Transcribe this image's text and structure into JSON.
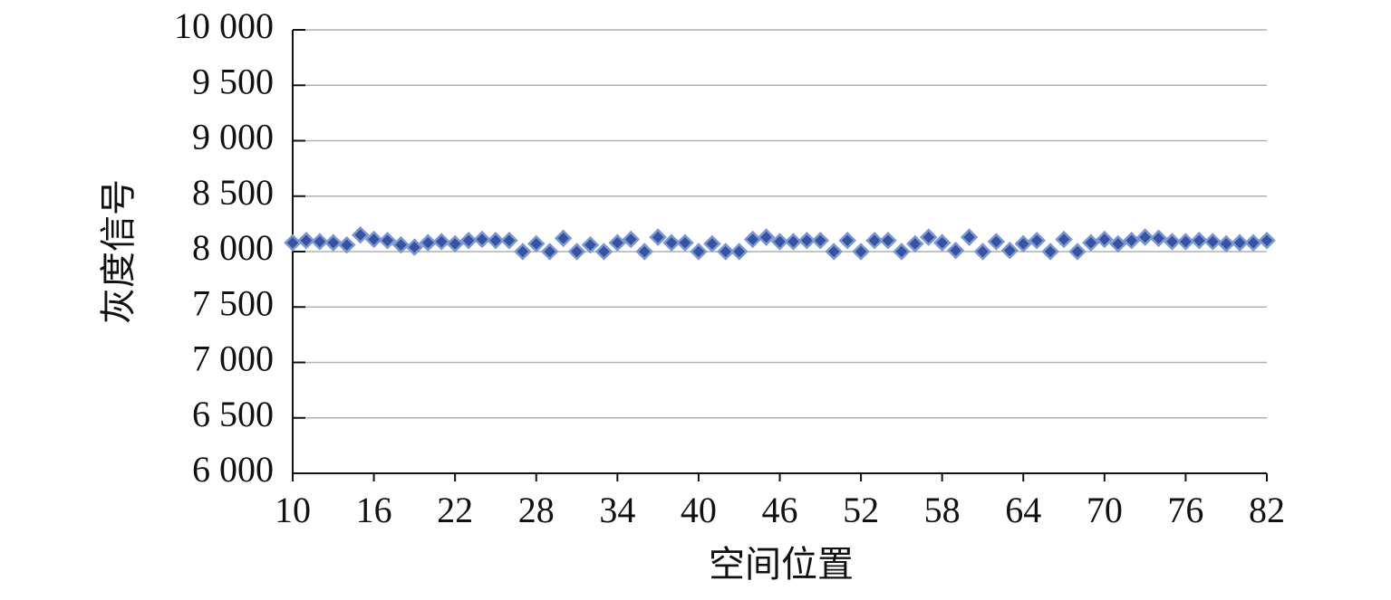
{
  "chart_data": {
    "type": "scatter",
    "x_label": "空间位置",
    "y_label": "灰度信号",
    "x": [
      10,
      11,
      12,
      13,
      14,
      15,
      16,
      17,
      18,
      19,
      20,
      21,
      22,
      23,
      24,
      25,
      26,
      27,
      28,
      29,
      30,
      31,
      32,
      33,
      34,
      35,
      36,
      37,
      38,
      39,
      40,
      41,
      42,
      43,
      44,
      45,
      46,
      47,
      48,
      49,
      50,
      51,
      52,
      53,
      54,
      55,
      56,
      57,
      58,
      59,
      60,
      61,
      62,
      63,
      64,
      65,
      66,
      67,
      68,
      69,
      70,
      71,
      72,
      73,
      74,
      75,
      76,
      77,
      78,
      79,
      80,
      81,
      82
    ],
    "series": [
      {
        "color": "#3552a3",
        "values": [
          8080,
          8100,
          8090,
          8080,
          8060,
          8150,
          8110,
          8100,
          8060,
          8040,
          8080,
          8090,
          8070,
          8100,
          8110,
          8100,
          8100,
          8000,
          8070,
          8000,
          8120,
          8000,
          8060,
          8000,
          8080,
          8110,
          8000,
          8130,
          8080,
          8080,
          8000,
          8070,
          8000,
          8000,
          8110,
          8130,
          8090,
          8090,
          8100,
          8100,
          8000,
          8100,
          8000,
          8100,
          8100,
          8000,
          8070,
          8130,
          8080,
          8010,
          8130,
          8000,
          8090,
          8010,
          8070,
          8100,
          8000,
          8110,
          8000,
          8080,
          8110,
          8070,
          8100,
          8130,
          8120,
          8090,
          8090,
          8100,
          8090,
          8070,
          8080,
          8080,
          8100
        ]
      }
    ],
    "xlim": [
      10,
      82
    ],
    "xticks": [
      10,
      16,
      22,
      28,
      34,
      40,
      46,
      52,
      58,
      64,
      70,
      76,
      82
    ],
    "ylim": [
      6000,
      10000
    ],
    "yticks": [
      {
        "value": 6000,
        "label": "6 000"
      },
      {
        "value": 6500,
        "label": "6 500"
      },
      {
        "value": 7000,
        "label": "7 000"
      },
      {
        "value": 7500,
        "label": "7 500"
      },
      {
        "value": 8000,
        "label": "8 000"
      },
      {
        "value": 8500,
        "label": "8 500"
      },
      {
        "value": 9000,
        "label": "9 000"
      },
      {
        "value": 9500,
        "label": "9 500"
      },
      {
        "value": 10000,
        "label": "10 000"
      }
    ],
    "grid": true
  }
}
